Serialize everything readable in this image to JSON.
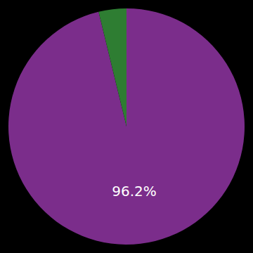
{
  "chart_data": {
    "type": "pie",
    "values": [
      96.2,
      3.8
    ],
    "colors": [
      "#7B2D8B",
      "#2E7D32"
    ],
    "data_labels": true,
    "value_labels": [
      "96.2%",
      null
    ]
  }
}
